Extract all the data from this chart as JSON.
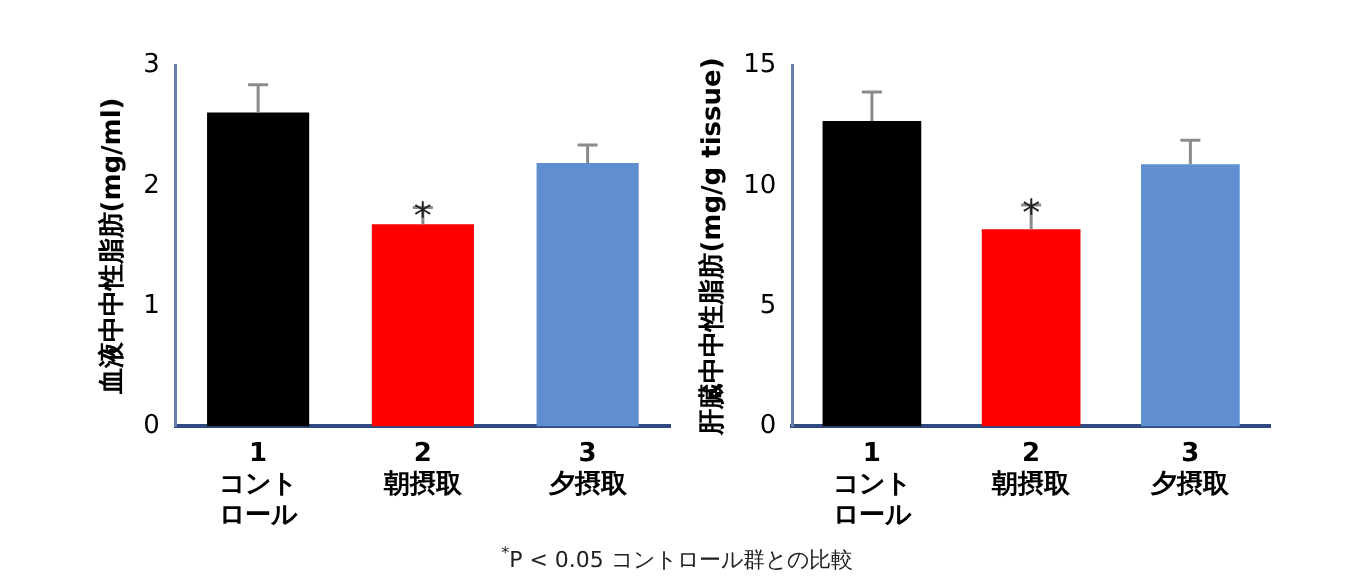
{
  "chart_data": [
    {
      "type": "bar",
      "ylabel": "血液中中性脂肪(mg/ml)",
      "categories": [
        "1\nコントロール",
        "2\n朝摂取",
        "3\n夕摂取"
      ],
      "values": [
        2.61,
        1.68,
        2.19
      ],
      "colors": [
        "#000000",
        "#ff0000",
        "#5f8fd0"
      ],
      "errors": [
        [
          2.61,
          2.84
        ],
        [
          1.68,
          1.82
        ],
        [
          2.19,
          2.34
        ]
      ],
      "ylim": [
        0,
        3
      ],
      "yticks": [
        0,
        1,
        2,
        3
      ],
      "grid": false,
      "legend": false,
      "annotations": [
        {
          "text": "*",
          "x": "2\n朝摂取",
          "y": 1.82
        }
      ]
    },
    {
      "type": "bar",
      "ylabel": "肝臓中中性脂肪(mg/g tissue)",
      "categories": [
        "1\nコントロール",
        "2\n朝摂取",
        "3\n夕摂取"
      ],
      "values": [
        12.7,
        8.2,
        10.9
      ],
      "colors": [
        "#000000",
        "#ff0000",
        "#5f8fd0"
      ],
      "errors": [
        [
          12.7,
          13.9
        ],
        [
          8.2,
          9.2
        ],
        [
          10.9,
          11.9
        ]
      ],
      "ylim": [
        0,
        15
      ],
      "yticks": [
        0,
        5,
        10,
        15
      ],
      "grid": false,
      "legend": false,
      "annotations": [
        {
          "text": "*",
          "x": "2\n朝摂取",
          "y": 9.2
        },
        "$^{*}$P < 0.05 コントロール群との比較"
      ]
    }
  ]
}
